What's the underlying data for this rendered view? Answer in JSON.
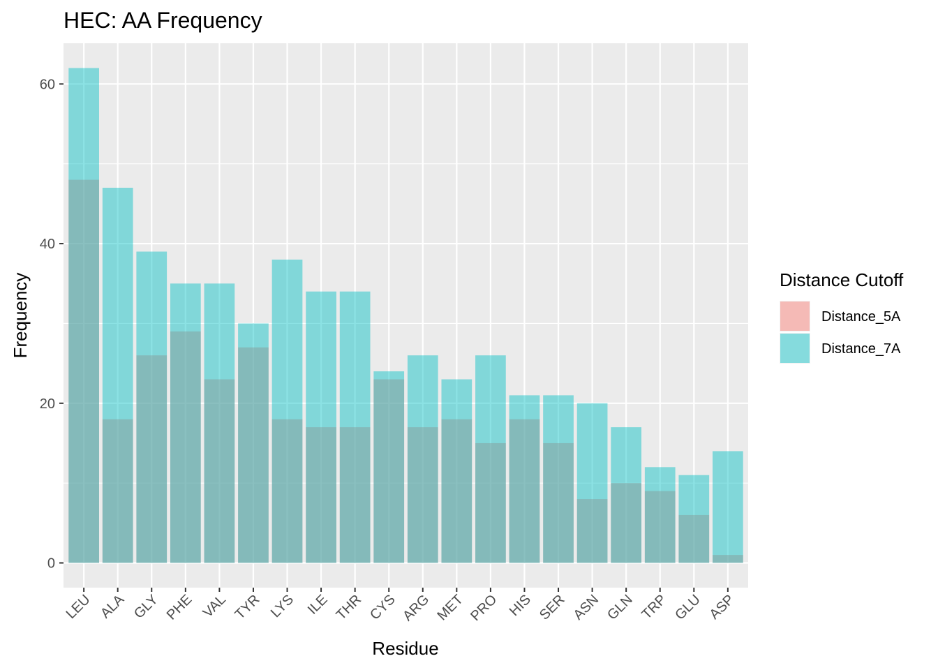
{
  "chart_data": {
    "type": "bar",
    "title": "HEC: AA Frequency",
    "xlabel": "Residue",
    "ylabel": "Frequency",
    "ylim": [
      -3.1,
      65.1
    ],
    "yticks": [
      0,
      20,
      40,
      60
    ],
    "grid": true,
    "categories": [
      "LEU",
      "ALA",
      "GLY",
      "PHE",
      "VAL",
      "TYR",
      "LYS",
      "ILE",
      "THR",
      "CYS",
      "ARG",
      "MET",
      "PRO",
      "HIS",
      "SER",
      "ASN",
      "GLN",
      "TRP",
      "GLU",
      "ASP"
    ],
    "series": [
      {
        "name": "Distance_5A",
        "color": "#F8766D",
        "values": [
          48,
          18,
          26,
          29,
          23,
          27,
          18,
          17,
          17,
          23,
          17,
          18,
          15,
          18,
          15,
          8,
          10,
          9,
          6,
          1
        ]
      },
      {
        "name": "Distance_7A",
        "color": "#00BFC4",
        "values": [
          62,
          47,
          39,
          35,
          35,
          30,
          38,
          34,
          34,
          24,
          26,
          23,
          26,
          21,
          21,
          20,
          17,
          12,
          11,
          14
        ]
      }
    ],
    "legend": {
      "title": "Distance Cutoff",
      "placement": "right"
    }
  }
}
